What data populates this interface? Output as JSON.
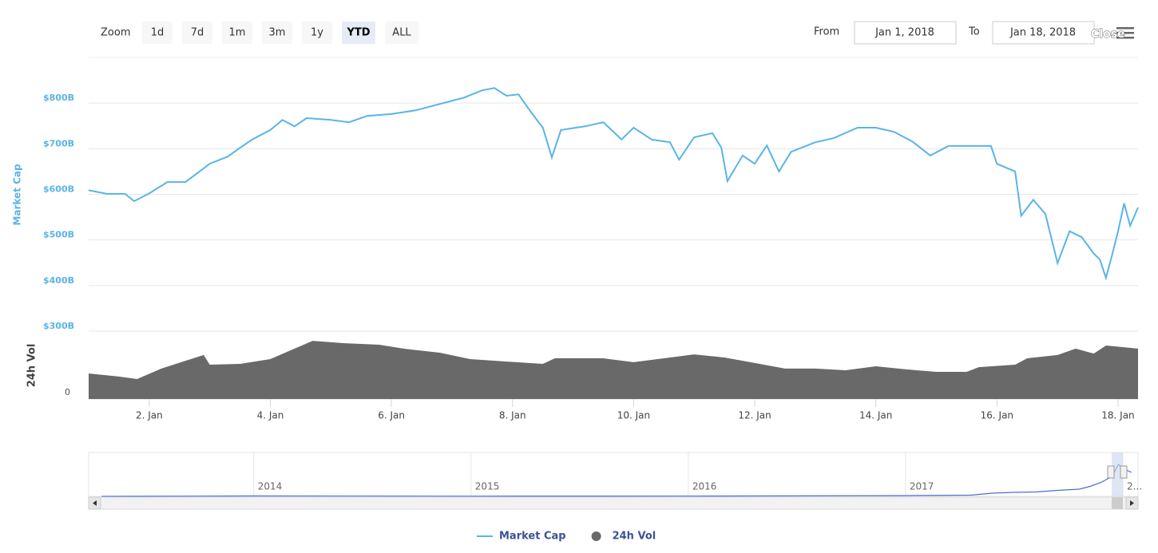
{
  "controls": {
    "zoom_label": "Zoom",
    "zoom_buttons": [
      "1d",
      "7d",
      "1m",
      "3m",
      "1y",
      "YTD",
      "ALL"
    ],
    "selected_zoom": "YTD",
    "from_label": "From",
    "from_value": "Jan 1, 2018",
    "to_label": "To",
    "to_value": "Jan 18, 2018",
    "close": "Close"
  },
  "chart_data": [
    {
      "type": "line",
      "y_label": "Market Cap",
      "y2_label": "24h Vol",
      "xlim": [
        1,
        18.33
      ],
      "xticks": [
        {
          "value": 2,
          "label": "2. Jan"
        },
        {
          "value": 4,
          "label": "4. Jan"
        },
        {
          "value": 6,
          "label": "6. Jan"
        },
        {
          "value": 8,
          "label": "8. Jan"
        },
        {
          "value": 10,
          "label": "10. Jan"
        },
        {
          "value": 12,
          "label": "12. Jan"
        },
        {
          "value": 14,
          "label": "14. Jan"
        },
        {
          "value": 16,
          "label": "16. Jan"
        },
        {
          "value": 18,
          "label": "18. Jan"
        }
      ],
      "ylim": [
        300,
        900
      ],
      "yticks": [
        {
          "value": 300,
          "label": "$300B"
        },
        {
          "value": 400,
          "label": "$400B"
        },
        {
          "value": 500,
          "label": "$500B"
        },
        {
          "value": 600,
          "label": "$600B"
        },
        {
          "value": 700,
          "label": "$700B"
        },
        {
          "value": 800,
          "label": "$800B"
        }
      ],
      "y2lim": [
        0,
        50
      ],
      "y2ticks": [
        0
      ],
      "grid": true,
      "series": [
        {
          "name": "Market Cap",
          "color": "#5ab4e5",
          "x": [
            1.0,
            1.3,
            1.6,
            1.75,
            2.0,
            2.3,
            2.6,
            3.0,
            3.3,
            3.5,
            3.7,
            4.0,
            4.2,
            4.4,
            4.6,
            5.0,
            5.3,
            5.6,
            6.0,
            6.4,
            6.8,
            7.2,
            7.5,
            7.7,
            7.9,
            8.1,
            8.3,
            8.5,
            8.65,
            8.8,
            9.2,
            9.5,
            9.8,
            10.0,
            10.3,
            10.6,
            10.75,
            11.0,
            11.3,
            11.45,
            11.55,
            11.8,
            12.0,
            12.2,
            12.4,
            12.6,
            13.0,
            13.3,
            13.7,
            14.0,
            14.3,
            14.6,
            14.9,
            15.2,
            15.5,
            15.9,
            16.0,
            16.3,
            16.4,
            16.6,
            16.8,
            17.0,
            17.2,
            17.4,
            17.6,
            17.7,
            17.8,
            17.9,
            18.0,
            18.1,
            18.2,
            18.33
          ],
          "values": [
            609,
            601,
            601,
            585,
            602,
            627,
            627,
            667,
            683,
            702,
            720,
            741,
            763,
            749,
            767,
            763,
            758,
            772,
            776,
            784,
            798,
            812,
            828,
            833,
            816,
            819,
            781,
            746,
            681,
            741,
            749,
            758,
            720,
            746,
            720,
            714,
            676,
            725,
            734,
            702,
            629,
            685,
            667,
            707,
            650,
            693,
            714,
            723,
            746,
            746,
            737,
            716,
            685,
            706,
            706,
            706,
            667,
            650,
            553,
            588,
            557,
            449,
            519,
            506,
            470,
            457,
            417,
            466,
            519,
            580,
            531,
            571
          ]
        },
        {
          "name": "24h Vol",
          "color": "#696969",
          "axis": "y2",
          "type": "area",
          "x": [
            1.0,
            1.5,
            1.8,
            2.2,
            2.6,
            2.9,
            3.0,
            3.5,
            4.0,
            4.4,
            4.7,
            5.2,
            5.8,
            6.2,
            6.8,
            7.3,
            7.9,
            8.5,
            8.7,
            9.5,
            10.0,
            10.5,
            11.0,
            11.5,
            12.0,
            12.5,
            13.0,
            13.5,
            14.0,
            14.5,
            15.0,
            15.5,
            15.7,
            16.3,
            16.5,
            17.0,
            17.3,
            17.6,
            17.8,
            18.33
          ],
          "values": [
            18.8,
            16.5,
            14.7,
            22.4,
            28.2,
            32.4,
            25.3,
            25.9,
            29.4,
            37.1,
            42.9,
            41.2,
            40,
            37.1,
            34.1,
            29.4,
            27.6,
            25.9,
            30,
            30,
            27.1,
            30,
            32.9,
            30.6,
            26.5,
            22.4,
            22.4,
            21.2,
            24.1,
            21.8,
            20,
            20,
            23.5,
            25.3,
            30,
            32.4,
            37.1,
            33.5,
            39.4,
            37.1
          ]
        }
      ]
    },
    {
      "type": "line",
      "xlim": [
        2013.24,
        2018.07
      ],
      "ylim": [
        0,
        1100
      ],
      "xticks": [
        2014,
        2015,
        2016,
        2017,
        {
          "value": 2018,
          "label": "2..."
        }
      ],
      "color": "#4a6fd1",
      "x": [
        2013.3,
        2014,
        2015,
        2016,
        2017,
        2017.3,
        2017.4,
        2017.5,
        2017.6,
        2017.7,
        2017.8,
        2017.85,
        2017.9,
        2017.95,
        2017.98,
        2018.0,
        2018.04
      ],
      "values": [
        1,
        10,
        5,
        6,
        17,
        30,
        80,
        100,
        110,
        150,
        180,
        250,
        350,
        500,
        800,
        700,
        600
      ]
    }
  ]
}
